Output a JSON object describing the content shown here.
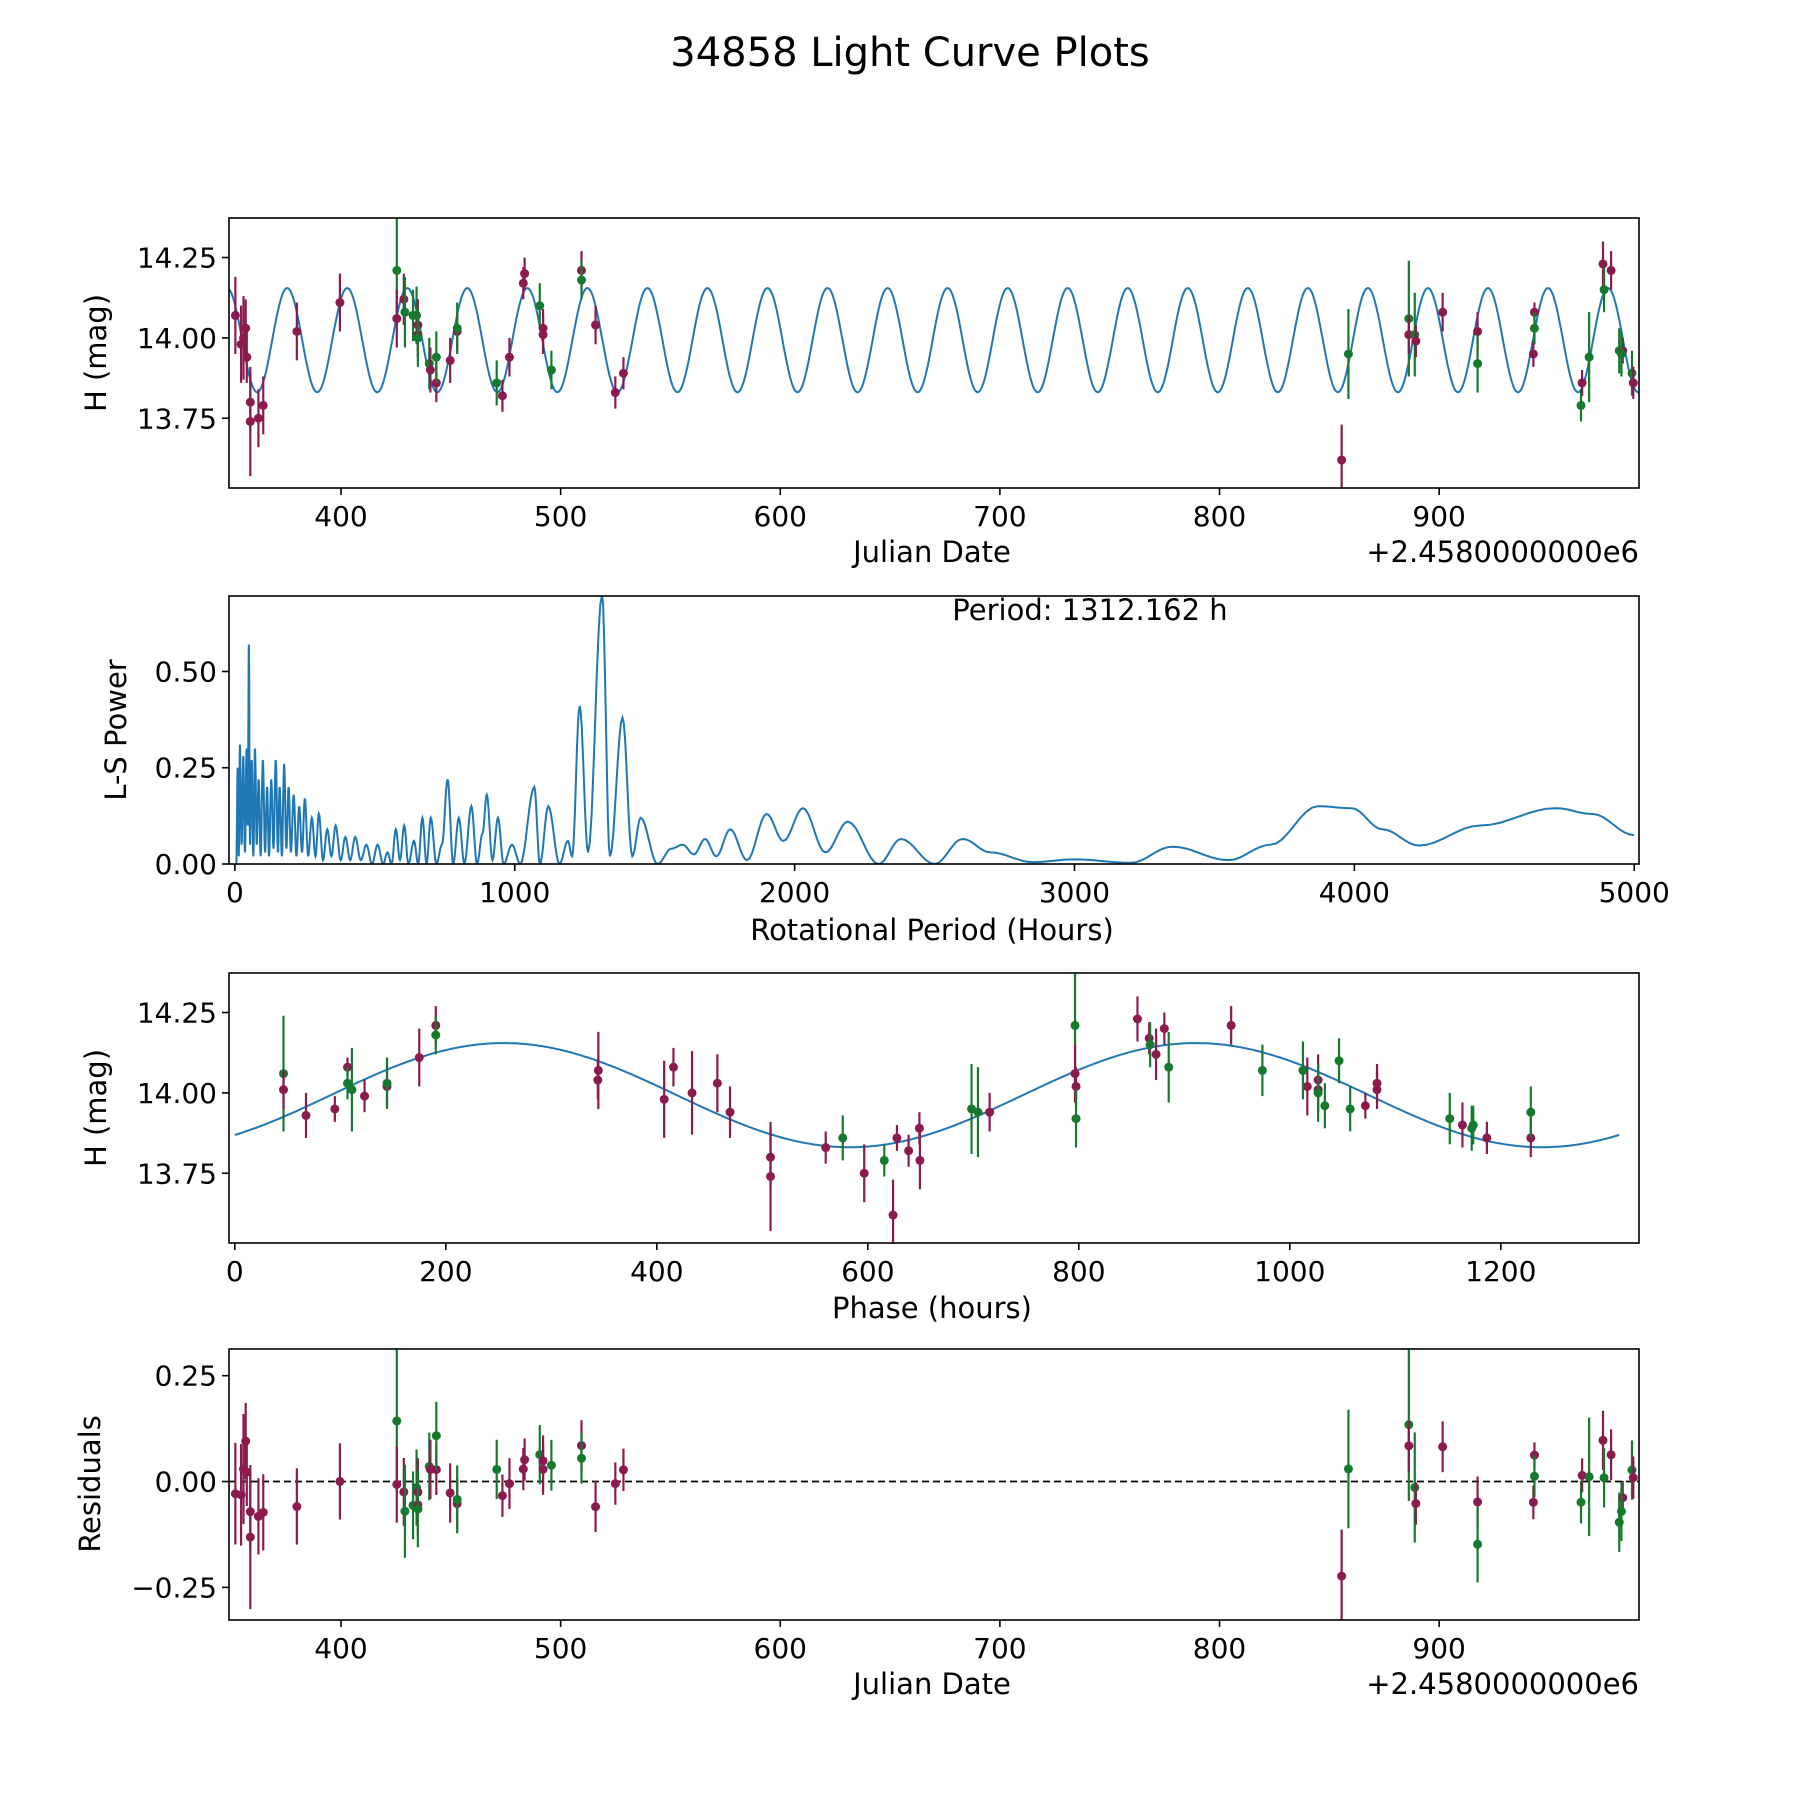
{
  "title": "34858 Light Curve Plots",
  "colors": {
    "maroon": "#8b1a4f",
    "green": "#157a2e",
    "model": "#1f77b4"
  },
  "chart_data": [
    {
      "id": "lightcurve",
      "type": "scatter",
      "xlabel": "Julian Date",
      "ylabel": "H (mag)",
      "offset_text": "+2.4580000000e6",
      "xlim": [
        349,
        991
      ],
      "ylim": [
        13.533,
        14.373
      ],
      "xticks": [
        400,
        500,
        600,
        700,
        800,
        900
      ],
      "yticks": [
        13.75,
        14.0,
        14.25
      ],
      "ytick_labels": [
        "13.75",
        "14.00",
        "14.25"
      ]
    },
    {
      "id": "periodogram",
      "type": "line",
      "xlabel": "Rotational Period (Hours)",
      "ylabel": "L-S Power",
      "annotation": "Period: 1312.162 h",
      "xlim": [
        -21,
        5017
      ],
      "ylim": [
        0,
        0.696
      ],
      "xticks": [
        0,
        1000,
        2000,
        3000,
        4000,
        5000
      ],
      "yticks": [
        0,
        0.25,
        0.5
      ],
      "ytick_labels": [
        "0.00",
        "0.25",
        "0.50"
      ],
      "points": [
        [
          5,
          0
        ],
        [
          10,
          0.25
        ],
        [
          14,
          0.02
        ],
        [
          18,
          0.31
        ],
        [
          24,
          0.05
        ],
        [
          30,
          0.28
        ],
        [
          36,
          0.03
        ],
        [
          42,
          0.3
        ],
        [
          46,
          0.1
        ],
        [
          50,
          0.57
        ],
        [
          54,
          0.05
        ],
        [
          60,
          0.27
        ],
        [
          66,
          0.02
        ],
        [
          72,
          0.3
        ],
        [
          78,
          0.05
        ],
        [
          85,
          0.22
        ],
        [
          92,
          0.02
        ],
        [
          100,
          0.27
        ],
        [
          108,
          0.03
        ],
        [
          115,
          0.2
        ],
        [
          122,
          0.02
        ],
        [
          130,
          0.22
        ],
        [
          138,
          0.04
        ],
        [
          146,
          0.27
        ],
        [
          154,
          0.03
        ],
        [
          160,
          0.2
        ],
        [
          168,
          0.02
        ],
        [
          176,
          0.26
        ],
        [
          184,
          0.04
        ],
        [
          192,
          0.2
        ],
        [
          200,
          0.03
        ],
        [
          210,
          0.18
        ],
        [
          220,
          0.02
        ],
        [
          230,
          0.15
        ],
        [
          240,
          0.03
        ],
        [
          250,
          0.17
        ],
        [
          262,
          0.02
        ],
        [
          275,
          0.12
        ],
        [
          288,
          0.02
        ],
        [
          300,
          0.13
        ],
        [
          315,
          0.01
        ],
        [
          330,
          0.09
        ],
        [
          345,
          0.02
        ],
        [
          360,
          0.1
        ],
        [
          378,
          0.01
        ],
        [
          395,
          0.07
        ],
        [
          412,
          0.01
        ],
        [
          430,
          0.07
        ],
        [
          450,
          0.01
        ],
        [
          470,
          0.05
        ],
        [
          490,
          0.0
        ],
        [
          510,
          0.05
        ],
        [
          530,
          0.0
        ],
        [
          545,
          0.03
        ],
        [
          560,
          0.0
        ],
        [
          575,
          0.09
        ],
        [
          590,
          0.01
        ],
        [
          605,
          0.1
        ],
        [
          620,
          0.0
        ],
        [
          640,
          0.06
        ],
        [
          655,
          0.0
        ],
        [
          670,
          0.12
        ],
        [
          685,
          0.0
        ],
        [
          700,
          0.12
        ],
        [
          720,
          0.0
        ],
        [
          740,
          0.05
        ],
        [
          760,
          0.22
        ],
        [
          780,
          0.0
        ],
        [
          800,
          0.12
        ],
        [
          820,
          0.0
        ],
        [
          845,
          0.15
        ],
        [
          865,
          0.0
        ],
        [
          885,
          0.08
        ],
        [
          900,
          0.18
        ],
        [
          920,
          0.01
        ],
        [
          940,
          0.12
        ],
        [
          960,
          0.0
        ],
        [
          990,
          0.05
        ],
        [
          1020,
          0.0
        ],
        [
          1070,
          0.2
        ],
        [
          1090,
          0.0
        ],
        [
          1120,
          0.15
        ],
        [
          1160,
          0.0
        ],
        [
          1190,
          0.06
        ],
        [
          1205,
          0.02
        ],
        [
          1232,
          0.41
        ],
        [
          1262,
          0.03
        ],
        [
          1312,
          0.7
        ],
        [
          1340,
          0.02
        ],
        [
          1385,
          0.38
        ],
        [
          1420,
          0.02
        ],
        [
          1450,
          0.12
        ],
        [
          1510,
          0.0
        ],
        [
          1560,
          0.04
        ],
        [
          1600,
          0.05
        ],
        [
          1640,
          0.025
        ],
        [
          1680,
          0.065
        ],
        [
          1720,
          0.02
        ],
        [
          1770,
          0.09
        ],
        [
          1830,
          0.01
        ],
        [
          1900,
          0.13
        ],
        [
          1960,
          0.06
        ],
        [
          2030,
          0.145
        ],
        [
          2110,
          0.03
        ],
        [
          2190,
          0.11
        ],
        [
          2300,
          0.0
        ],
        [
          2380,
          0.065
        ],
        [
          2500,
          0.0
        ],
        [
          2600,
          0.065
        ],
        [
          2700,
          0.03
        ],
        [
          2850,
          0.005
        ],
        [
          3000,
          0.012
        ],
        [
          3200,
          0.003
        ],
        [
          3350,
          0.045
        ],
        [
          3550,
          0.01
        ],
        [
          3700,
          0.05
        ],
        [
          3870,
          0.15
        ],
        [
          3990,
          0.145
        ],
        [
          4100,
          0.09
        ],
        [
          4230,
          0.048
        ],
        [
          4450,
          0.1
        ],
        [
          4720,
          0.145
        ],
        [
          4850,
          0.13
        ],
        [
          5000,
          0.075
        ]
      ]
    },
    {
      "id": "phased",
      "type": "scatter",
      "xlabel": "Phase (hours)",
      "ylabel": "H (mag)",
      "xlim": [
        -5.5,
        1331
      ],
      "ylim": [
        13.533,
        14.373
      ],
      "xticks": [
        0,
        200,
        400,
        600,
        800,
        1000,
        1200
      ],
      "yticks": [
        13.75,
        14.0,
        14.25
      ],
      "ytick_labels": [
        "13.75",
        "14.00",
        "14.25"
      ]
    },
    {
      "id": "residuals",
      "type": "scatter",
      "xlabel": "Julian Date",
      "ylabel": "Residuals",
      "offset_text": "+2.4580000000e6",
      "xlim": [
        349,
        991
      ],
      "ylim": [
        -0.327,
        0.313
      ],
      "xticks": [
        400,
        500,
        600,
        700,
        800,
        900
      ],
      "yticks": [
        -0.25,
        0,
        0.25
      ],
      "ytick_labels": [
        "−0.25",
        "0.00",
        "0.25"
      ]
    }
  ],
  "model": {
    "mean_mag": 13.993,
    "amplitude": 0.162,
    "period_hours": 1312.162,
    "peak_jd_offset": 375.5,
    "phase_of_peak_hours": 911
  },
  "observations": [
    [
      351.9,
      14.07,
      0.12,
      "m"
    ],
    [
      354.5,
      13.98,
      0.12,
      "m"
    ],
    [
      355.6,
      14.0,
      0.13,
      "m"
    ],
    [
      356.6,
      14.03,
      0.09,
      "m"
    ],
    [
      357.1,
      13.94,
      0.08,
      "m"
    ],
    [
      358.7,
      13.8,
      0.09,
      "m"
    ],
    [
      358.7,
      13.74,
      0.17,
      "m"
    ],
    [
      362.4,
      13.75,
      0.09,
      "m"
    ],
    [
      364.6,
      13.79,
      0.09,
      "m"
    ],
    [
      379.9,
      14.02,
      0.09,
      "m"
    ],
    [
      399.5,
      14.11,
      0.09,
      "m"
    ],
    [
      425.4,
      14.21,
      0.17,
      "g"
    ],
    [
      425.4,
      14.06,
      0.09,
      "m"
    ],
    [
      428.6,
      14.12,
      0.08,
      "m"
    ],
    [
      429.1,
      14.08,
      0.11,
      "g"
    ],
    [
      432.8,
      14.07,
      0.08,
      "g"
    ],
    [
      434.4,
      14.07,
      0.09,
      "g"
    ],
    [
      435.0,
      14.04,
      0.08,
      "m"
    ],
    [
      435.0,
      14.01,
      0.07,
      "m"
    ],
    [
      435.0,
      14.0,
      0.09,
      "g"
    ],
    [
      440.2,
      13.92,
      0.08,
      "g"
    ],
    [
      440.7,
      13.9,
      0.07,
      "m"
    ],
    [
      443.4,
      13.86,
      0.06,
      "m"
    ],
    [
      443.4,
      13.94,
      0.08,
      "g"
    ],
    [
      449.7,
      13.93,
      0.07,
      "m"
    ],
    [
      452.9,
      14.02,
      0.06,
      "m"
    ],
    [
      452.9,
      14.03,
      0.08,
      "g"
    ],
    [
      470.9,
      13.86,
      0.07,
      "g"
    ],
    [
      473.5,
      13.82,
      0.05,
      "m"
    ],
    [
      476.7,
      13.94,
      0.06,
      "m"
    ],
    [
      483.0,
      14.17,
      0.05,
      "m"
    ],
    [
      483.6,
      14.2,
      0.05,
      "m"
    ],
    [
      490.5,
      14.1,
      0.07,
      "g"
    ],
    [
      492.0,
      14.03,
      0.06,
      "m"
    ],
    [
      492.0,
      14.01,
      0.06,
      "m"
    ],
    [
      495.8,
      13.9,
      0.06,
      "g"
    ],
    [
      509.5,
      14.21,
      0.06,
      "m"
    ],
    [
      509.5,
      14.18,
      0.06,
      "g"
    ],
    [
      515.9,
      14.04,
      0.06,
      "m"
    ],
    [
      524.9,
      13.83,
      0.05,
      "m"
    ],
    [
      528.6,
      13.89,
      0.05,
      "m"
    ],
    [
      855.6,
      13.62,
      0.11,
      "m"
    ],
    [
      858.7,
      13.95,
      0.14,
      "g"
    ],
    [
      886.2,
      14.06,
      0.18,
      "g"
    ],
    [
      886.2,
      14.01,
      0.06,
      "m"
    ],
    [
      888.9,
      14.01,
      0.13,
      "g"
    ],
    [
      889.4,
      13.99,
      0.05,
      "m"
    ],
    [
      901.6,
      14.08,
      0.06,
      "m"
    ],
    [
      917.5,
      14.02,
      0.06,
      "m"
    ],
    [
      917.5,
      13.92,
      0.09,
      "g"
    ],
    [
      942.9,
      13.95,
      0.04,
      "m"
    ],
    [
      943.4,
      14.08,
      0.03,
      "m"
    ],
    [
      943.4,
      14.03,
      0.05,
      "g"
    ],
    [
      964.6,
      13.79,
      0.05,
      "g"
    ],
    [
      965.1,
      13.86,
      0.04,
      "m"
    ],
    [
      968.3,
      13.94,
      0.14,
      "g"
    ],
    [
      974.6,
      14.23,
      0.07,
      "m"
    ],
    [
      975.1,
      14.15,
      0.07,
      "g"
    ],
    [
      978.3,
      14.21,
      0.06,
      "m"
    ],
    [
      982.0,
      13.96,
      0.07,
      "g"
    ],
    [
      983.6,
      13.96,
      0.04,
      "m"
    ],
    [
      983.0,
      13.95,
      0.07,
      "g"
    ],
    [
      987.8,
      13.89,
      0.07,
      "g"
    ],
    [
      988.4,
      13.86,
      0.05,
      "m"
    ]
  ]
}
